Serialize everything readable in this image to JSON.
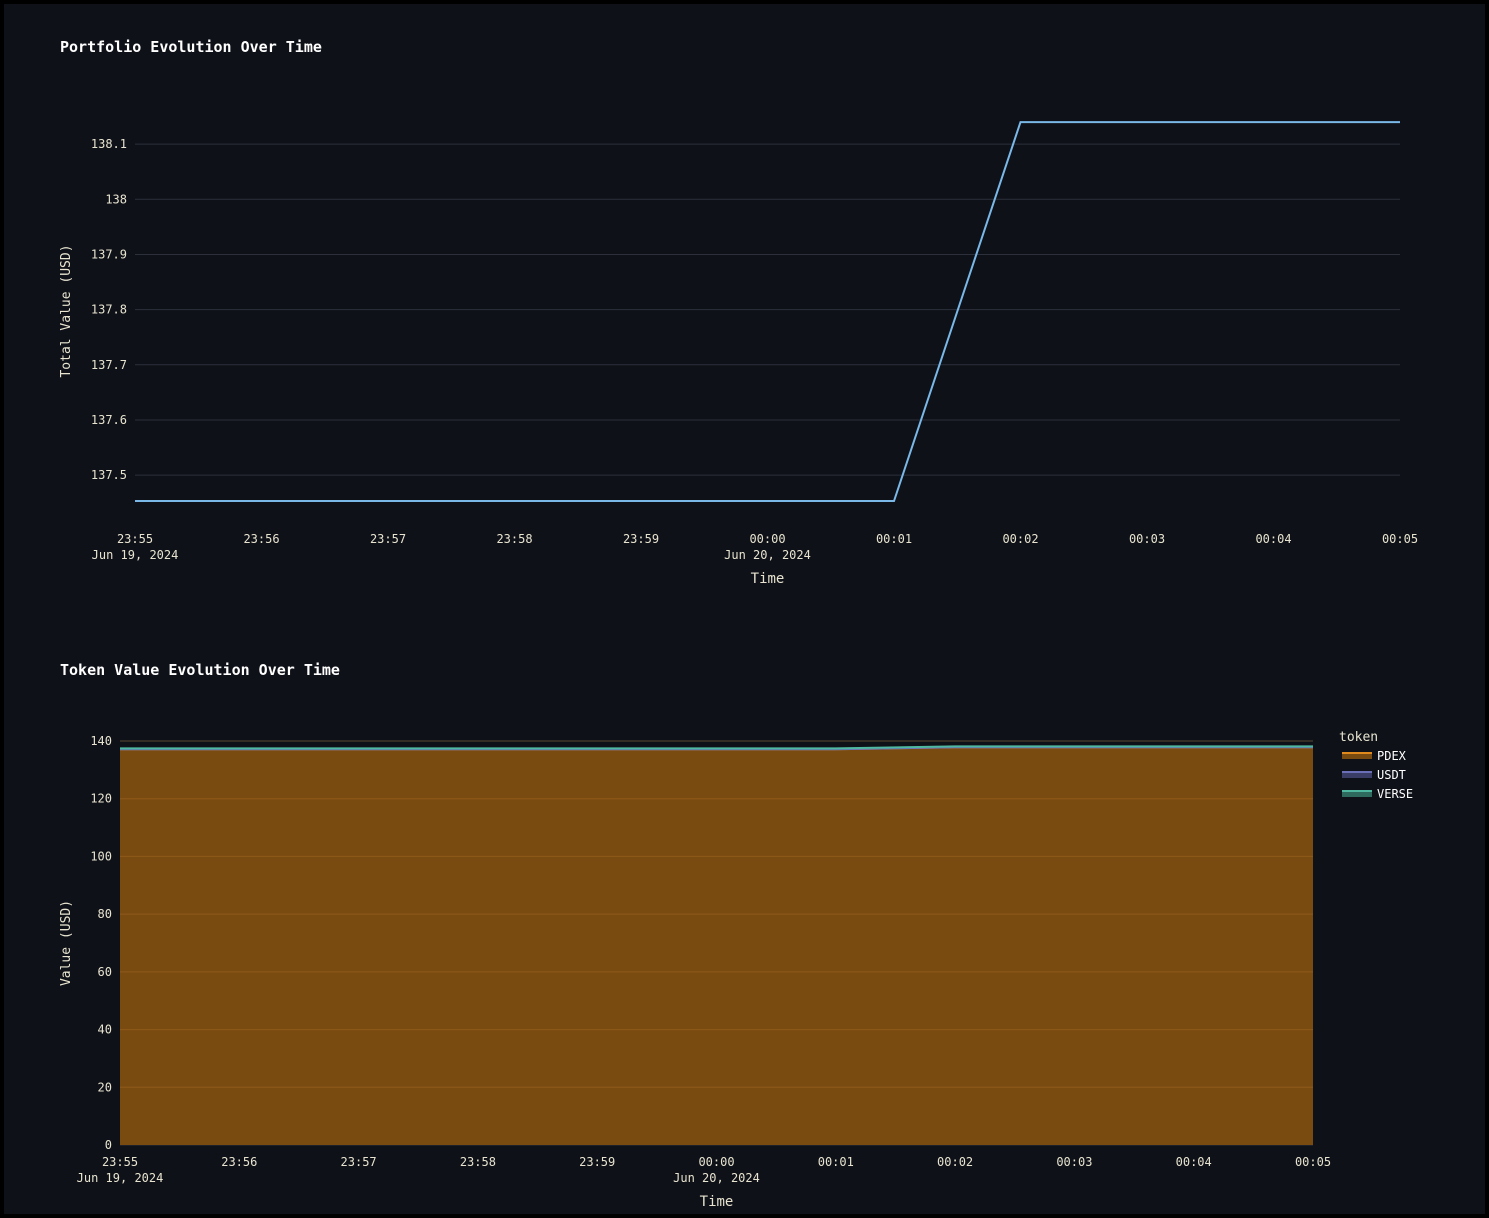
{
  "chart_data": [
    {
      "type": "line",
      "title": "Portfolio Evolution Over Time",
      "xlabel": "Time",
      "ylabel": "Total Value (USD)",
      "x": [
        "23:55",
        "23:56",
        "23:57",
        "23:58",
        "23:59",
        "00:00",
        "00:01",
        "00:02",
        "00:03",
        "00:04",
        "00:05"
      ],
      "x_tick_labels": [
        "23:55",
        "23:56",
        "23:57",
        "23:58",
        "23:59",
        "00:00",
        "00:01",
        "00:02",
        "00:03",
        "00:04",
        "00:05"
      ],
      "x_tick_sublabels": {
        "0": "Jun 19, 2024",
        "5": "Jun 20, 2024"
      },
      "series": [
        {
          "values": [
            137.453,
            137.453,
            137.453,
            137.453,
            137.453,
            137.453,
            137.453,
            138.14,
            138.14,
            138.14,
            138.14
          ],
          "color": "#7ab8e8"
        }
      ],
      "y_ticks": [
        137.5,
        137.6,
        137.7,
        137.8,
        137.9,
        138,
        138.1
      ],
      "y_tick_labels": [
        "137.5",
        "137.6",
        "137.7",
        "137.8",
        "137.9",
        "138",
        "138.1"
      ],
      "ylim": [
        137.415,
        138.18
      ],
      "grid": true
    },
    {
      "type": "area",
      "stacked": true,
      "title": "Token Value Evolution Over Time",
      "xlabel": "Time",
      "ylabel": "Value (USD)",
      "x": [
        "23:55",
        "23:56",
        "23:57",
        "23:58",
        "23:59",
        "00:00",
        "00:01",
        "00:02",
        "00:03",
        "00:04",
        "00:05"
      ],
      "x_tick_labels": [
        "23:55",
        "23:56",
        "23:57",
        "23:58",
        "23:59",
        "00:00",
        "00:01",
        "00:02",
        "00:03",
        "00:04",
        "00:05"
      ],
      "x_tick_sublabels": {
        "0": "Jun 19, 2024",
        "5": "Jun 20, 2024"
      },
      "legend_title": "token",
      "legend_position": "right",
      "series": [
        {
          "name": "PDEX",
          "values": [
            137.15,
            137.15,
            137.15,
            137.15,
            137.15,
            137.15,
            137.15,
            137.84,
            137.84,
            137.84,
            137.84
          ],
          "color": "#e08a1e",
          "fill": "#7a4b11"
        },
        {
          "name": "USDT",
          "values": [
            0,
            0,
            0,
            0,
            0,
            0,
            0,
            0,
            0,
            0,
            0
          ],
          "color": "#6a6fb8",
          "fill": "#3a3e66"
        },
        {
          "name": "VERSE",
          "values": [
            0.3,
            0.3,
            0.3,
            0.3,
            0.3,
            0.3,
            0.3,
            0.3,
            0.3,
            0.3,
            0.3
          ],
          "color": "#4fb8a0",
          "fill": "#2e6a5e"
        }
      ],
      "y_ticks": [
        0,
        20,
        40,
        60,
        80,
        100,
        120,
        140
      ],
      "y_tick_labels": [
        "0",
        "20",
        "40",
        "60",
        "80",
        "100",
        "120",
        "140"
      ],
      "ylim": [
        0,
        140
      ],
      "grid": true
    }
  ]
}
